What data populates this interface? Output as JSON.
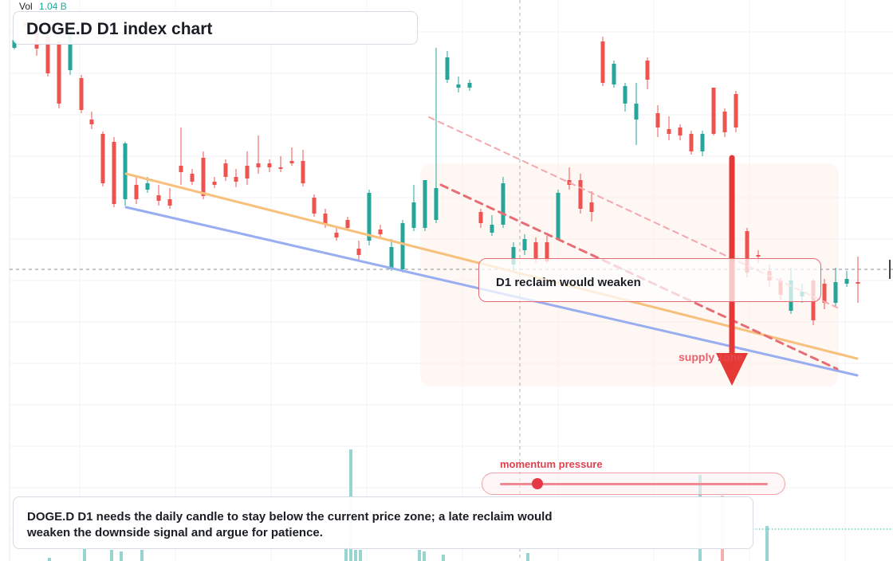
{
  "chart_data": {
    "type": "candlestick",
    "symbol": "DOGE.D",
    "timeframe": "D1",
    "title": "DOGE.D D1 index chart",
    "volume_label": "Vol",
    "volume_value": "1.04 B",
    "price_range_shown": [
      0,
      704
    ],
    "candles": [
      [
        60,
        50,
        50,
        62
      ],
      [
        28,
        33,
        30,
        35
      ],
      [
        36,
        61,
        30,
        70
      ],
      [
        46,
        92,
        42,
        96
      ],
      [
        52,
        130,
        50,
        136
      ],
      [
        88,
        40,
        32,
        94
      ],
      [
        98,
        138,
        94,
        142
      ],
      [
        150,
        156,
        140,
        162
      ],
      [
        168,
        230,
        165,
        234
      ],
      [
        178,
        256,
        172,
        260
      ],
      [
        250,
        180,
        178,
        258
      ],
      [
        232,
        250,
        222,
        256
      ],
      [
        238,
        230,
        222,
        242
      ],
      [
        245,
        252,
        232,
        258
      ],
      [
        250,
        258,
        236,
        262
      ],
      [
        208,
        216,
        160,
        232
      ],
      [
        218,
        228,
        212,
        232
      ],
      [
        198,
        246,
        190,
        250
      ],
      [
        228,
        232,
        222,
        236
      ],
      [
        205,
        222,
        200,
        227
      ],
      [
        222,
        228,
        212,
        235
      ],
      [
        208,
        224,
        190,
        232
      ],
      [
        205,
        210,
        170,
        218
      ],
      [
        205,
        210,
        200,
        216
      ],
      [
        210,
        212,
        196,
        216
      ],
      [
        202,
        205,
        185,
        208
      ],
      [
        202,
        230,
        188,
        234
      ],
      [
        248,
        268,
        244,
        272
      ],
      [
        268,
        282,
        262,
        286
      ],
      [
        292,
        298,
        284,
        302
      ],
      [
        276,
        286,
        272,
        290
      ],
      [
        312,
        320,
        302,
        326
      ],
      [
        302,
        242,
        238,
        308
      ],
      [
        288,
        294,
        282,
        298
      ],
      [
        338,
        310,
        300,
        340
      ],
      [
        338,
        280,
        276,
        342
      ],
      [
        286,
        254,
        232,
        290
      ],
      [
        286,
        226,
        226,
        290
      ],
      [
        276,
        236,
        60,
        280
      ],
      [
        100,
        72,
        64,
        104
      ],
      [
        110,
        106,
        96,
        116
      ],
      [
        110,
        104,
        100,
        114
      ],
      [
        266,
        280,
        262,
        286
      ],
      [
        292,
        282,
        270,
        296
      ],
      [
        282,
        230,
        222,
        286
      ],
      [
        332,
        310,
        304,
        340
      ],
      [
        314,
        300,
        294,
        320
      ],
      [
        304,
        326,
        298,
        330
      ],
      [
        304,
        328,
        296,
        330
      ],
      [
        300,
        242,
        238,
        302
      ],
      [
        226,
        232,
        210,
        238
      ],
      [
        226,
        262,
        218,
        268
      ],
      [
        254,
        266,
        240,
        278
      ],
      [
        52,
        104,
        46,
        108
      ],
      [
        106,
        80,
        76,
        110
      ],
      [
        130,
        108,
        104,
        140
      ],
      [
        150,
        130,
        104,
        182
      ],
      [
        76,
        100,
        72,
        112
      ],
      [
        142,
        160,
        132,
        172
      ],
      [
        162,
        168,
        146,
        176
      ],
      [
        160,
        170,
        156,
        176
      ],
      [
        168,
        190,
        164,
        194
      ],
      [
        190,
        168,
        164,
        196
      ],
      [
        110,
        168,
        110,
        170
      ],
      [
        140,
        166,
        136,
        172
      ],
      [
        118,
        160,
        114,
        166
      ],
      [
        290,
        342,
        286,
        348
      ],
      [
        320,
        322,
        314,
        330
      ],
      [
        340,
        352,
        332,
        360
      ],
      [
        352,
        370,
        348,
        376
      ],
      [
        390,
        352,
        336,
        394
      ],
      [
        372,
        366,
        356,
        380
      ],
      [
        352,
        402,
        350,
        408
      ],
      [
        356,
        380,
        350,
        388
      ],
      [
        380,
        354,
        336,
        384
      ],
      [
        356,
        350,
        340,
        360
      ],
      [
        354,
        356,
        322,
        380
      ]
    ],
    "lines": [
      {
        "name": "yellow trendline",
        "color": "#f7c07c",
        "from": [
          158,
          218
        ],
        "to": [
          1075,
          450
        ]
      },
      {
        "name": "blue trendline",
        "color": "#98aef0",
        "from": [
          158,
          260
        ],
        "to": [
          1075,
          471
        ]
      },
      {
        "name": "red dashed upper",
        "color": "#f4a7ad",
        "from": [
          538,
          147
        ],
        "to": [
          1050,
          386
        ]
      },
      {
        "name": "red dashed lower",
        "color": "#e76d75",
        "from": [
          553,
          232
        ],
        "to": [
          1050,
          463
        ]
      }
    ],
    "annotations": {
      "note": "D1 reclaim would weaken",
      "supply": "supply zone",
      "momentum": "momentum pressure",
      "momentum_level": 0.07,
      "description": "DOGE.D D1 needs the daily candle to stay below the current price zone; a late reclaim would weaken the downside signal and argue for patience."
    },
    "colors": {
      "up": "#26a69a",
      "down": "#ef5350",
      "arrow": "#e53935",
      "yellow": "#f7c07c",
      "blue": "#98aef0"
    }
  }
}
